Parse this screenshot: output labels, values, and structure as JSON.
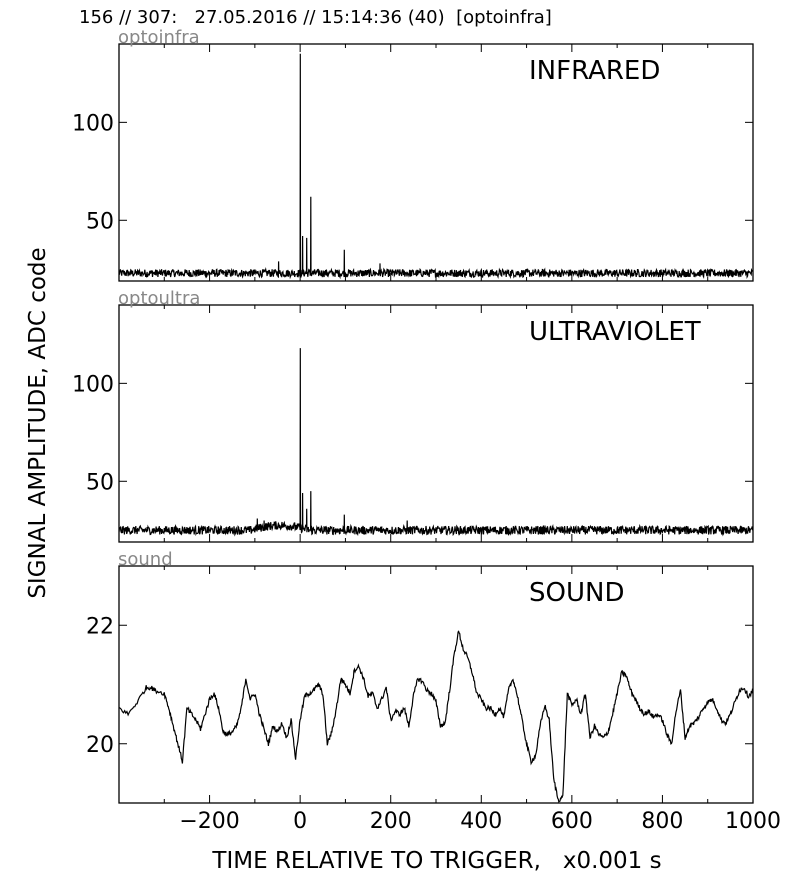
{
  "header": {
    "title": "156 // 307:   27.05.2016 // 15:14:36 (40)  [optoinfra]"
  },
  "colors": {
    "trace": "#000000",
    "channel_label": "#888888",
    "frame": "#000000"
  },
  "chart_data": [
    {
      "type": "line",
      "channel": "optoinfra",
      "annotation": "INFRARED",
      "ylabel": "SIGNAL AMPLITUDE,  ADC code",
      "xlabel": "TIME RELATIVE TO TRIGGER,   x0.001 s",
      "xlim": [
        -400,
        1000
      ],
      "ylim": [
        19,
        140
      ],
      "yticks": [
        50,
        100
      ],
      "baseline": 23,
      "noise": 2,
      "spikes": [
        {
          "x": 0,
          "y": 135
        },
        {
          "x": 5,
          "y": 42
        },
        {
          "x": 14,
          "y": 41
        },
        {
          "x": 23,
          "y": 62
        },
        {
          "x": 97,
          "y": 35
        },
        {
          "x": -48,
          "y": 29
        },
        {
          "x": 176,
          "y": 28
        }
      ],
      "bumps": []
    },
    {
      "type": "line",
      "channel": "optoultra",
      "annotation": "ULTRAVIOLET",
      "xlim": [
        -400,
        1000
      ],
      "ylim": [
        19,
        140
      ],
      "yticks": [
        50,
        100
      ],
      "baseline": 25,
      "noise": 2.2,
      "spikes": [
        {
          "x": 0,
          "y": 118
        },
        {
          "x": 5,
          "y": 44
        },
        {
          "x": 14,
          "y": 36
        },
        {
          "x": 23,
          "y": 45
        },
        {
          "x": 97,
          "y": 33
        },
        {
          "x": -95,
          "y": 31
        },
        {
          "x": -80,
          "y": 30
        },
        {
          "x": 236,
          "y": 30
        }
      ],
      "bumps": [
        {
          "x0": -110,
          "x1": 20,
          "h": 2.5
        }
      ]
    },
    {
      "type": "line",
      "channel": "sound",
      "annotation": "SOUND",
      "xlim": [
        -400,
        1000
      ],
      "ylim": [
        19,
        23
      ],
      "yticks": [
        20,
        22
      ],
      "x": [
        -400,
        -380,
        -360,
        -340,
        -330,
        -320,
        -300,
        -290,
        -280,
        -270,
        -260,
        -250,
        -240,
        -230,
        -220,
        -210,
        -200,
        -190,
        -180,
        -170,
        -160,
        -150,
        -140,
        -130,
        -120,
        -110,
        -100,
        -90,
        -80,
        -70,
        -60,
        -50,
        -40,
        -30,
        -20,
        -10,
        0,
        10,
        20,
        30,
        40,
        50,
        60,
        70,
        80,
        90,
        100,
        110,
        120,
        130,
        140,
        150,
        160,
        170,
        180,
        190,
        200,
        210,
        220,
        230,
        240,
        250,
        260,
        270,
        280,
        290,
        300,
        310,
        320,
        330,
        340,
        350,
        360,
        370,
        380,
        390,
        400,
        410,
        420,
        430,
        440,
        450,
        460,
        470,
        480,
        490,
        500,
        510,
        520,
        530,
        540,
        550,
        560,
        570,
        580,
        590,
        600,
        610,
        620,
        630,
        640,
        650,
        660,
        670,
        680,
        690,
        700,
        710,
        720,
        730,
        740,
        750,
        760,
        770,
        780,
        790,
        800,
        810,
        820,
        830,
        840,
        850,
        860,
        870,
        880,
        890,
        900,
        910,
        920,
        930,
        940,
        950,
        960,
        970,
        980,
        990,
        1000
      ],
      "y": [
        20.6,
        20.5,
        20.7,
        20.95,
        20.95,
        20.9,
        20.85,
        20.6,
        20.3,
        20.0,
        19.7,
        20.6,
        20.5,
        20.4,
        20.25,
        20.5,
        20.75,
        20.85,
        20.6,
        20.2,
        20.15,
        20.2,
        20.3,
        20.6,
        21.1,
        20.75,
        20.85,
        20.5,
        20.25,
        20.0,
        20.3,
        20.2,
        20.35,
        20.1,
        20.4,
        19.75,
        20.4,
        20.8,
        20.85,
        20.9,
        21.0,
        20.85,
        20.0,
        20.2,
        20.6,
        21.1,
        21.0,
        20.85,
        21.25,
        21.3,
        21.1,
        20.8,
        20.85,
        20.6,
        20.75,
        20.95,
        20.4,
        20.55,
        20.5,
        20.6,
        20.3,
        20.8,
        21.1,
        21.05,
        20.9,
        20.85,
        20.7,
        20.3,
        20.35,
        20.9,
        21.5,
        21.9,
        21.6,
        21.45,
        21.2,
        20.85,
        20.75,
        20.6,
        20.6,
        20.5,
        20.6,
        20.45,
        20.9,
        21.1,
        20.8,
        20.4,
        20.0,
        19.7,
        19.8,
        20.3,
        20.65,
        20.4,
        19.4,
        19.05,
        19.1,
        20.85,
        20.65,
        20.75,
        20.5,
        20.85,
        20.1,
        20.3,
        20.15,
        20.1,
        20.2,
        20.5,
        20.85,
        21.2,
        21.15,
        20.9,
        20.75,
        20.6,
        20.5,
        20.55,
        20.45,
        20.5,
        20.4,
        20.15,
        20.0,
        20.55,
        20.9,
        20.1,
        20.3,
        20.35,
        20.45,
        20.6,
        20.7,
        20.75,
        20.6,
        20.4,
        20.35,
        20.5,
        20.7,
        20.9,
        20.95,
        20.8,
        20.9
      ],
      "noise": 0.04
    }
  ]
}
